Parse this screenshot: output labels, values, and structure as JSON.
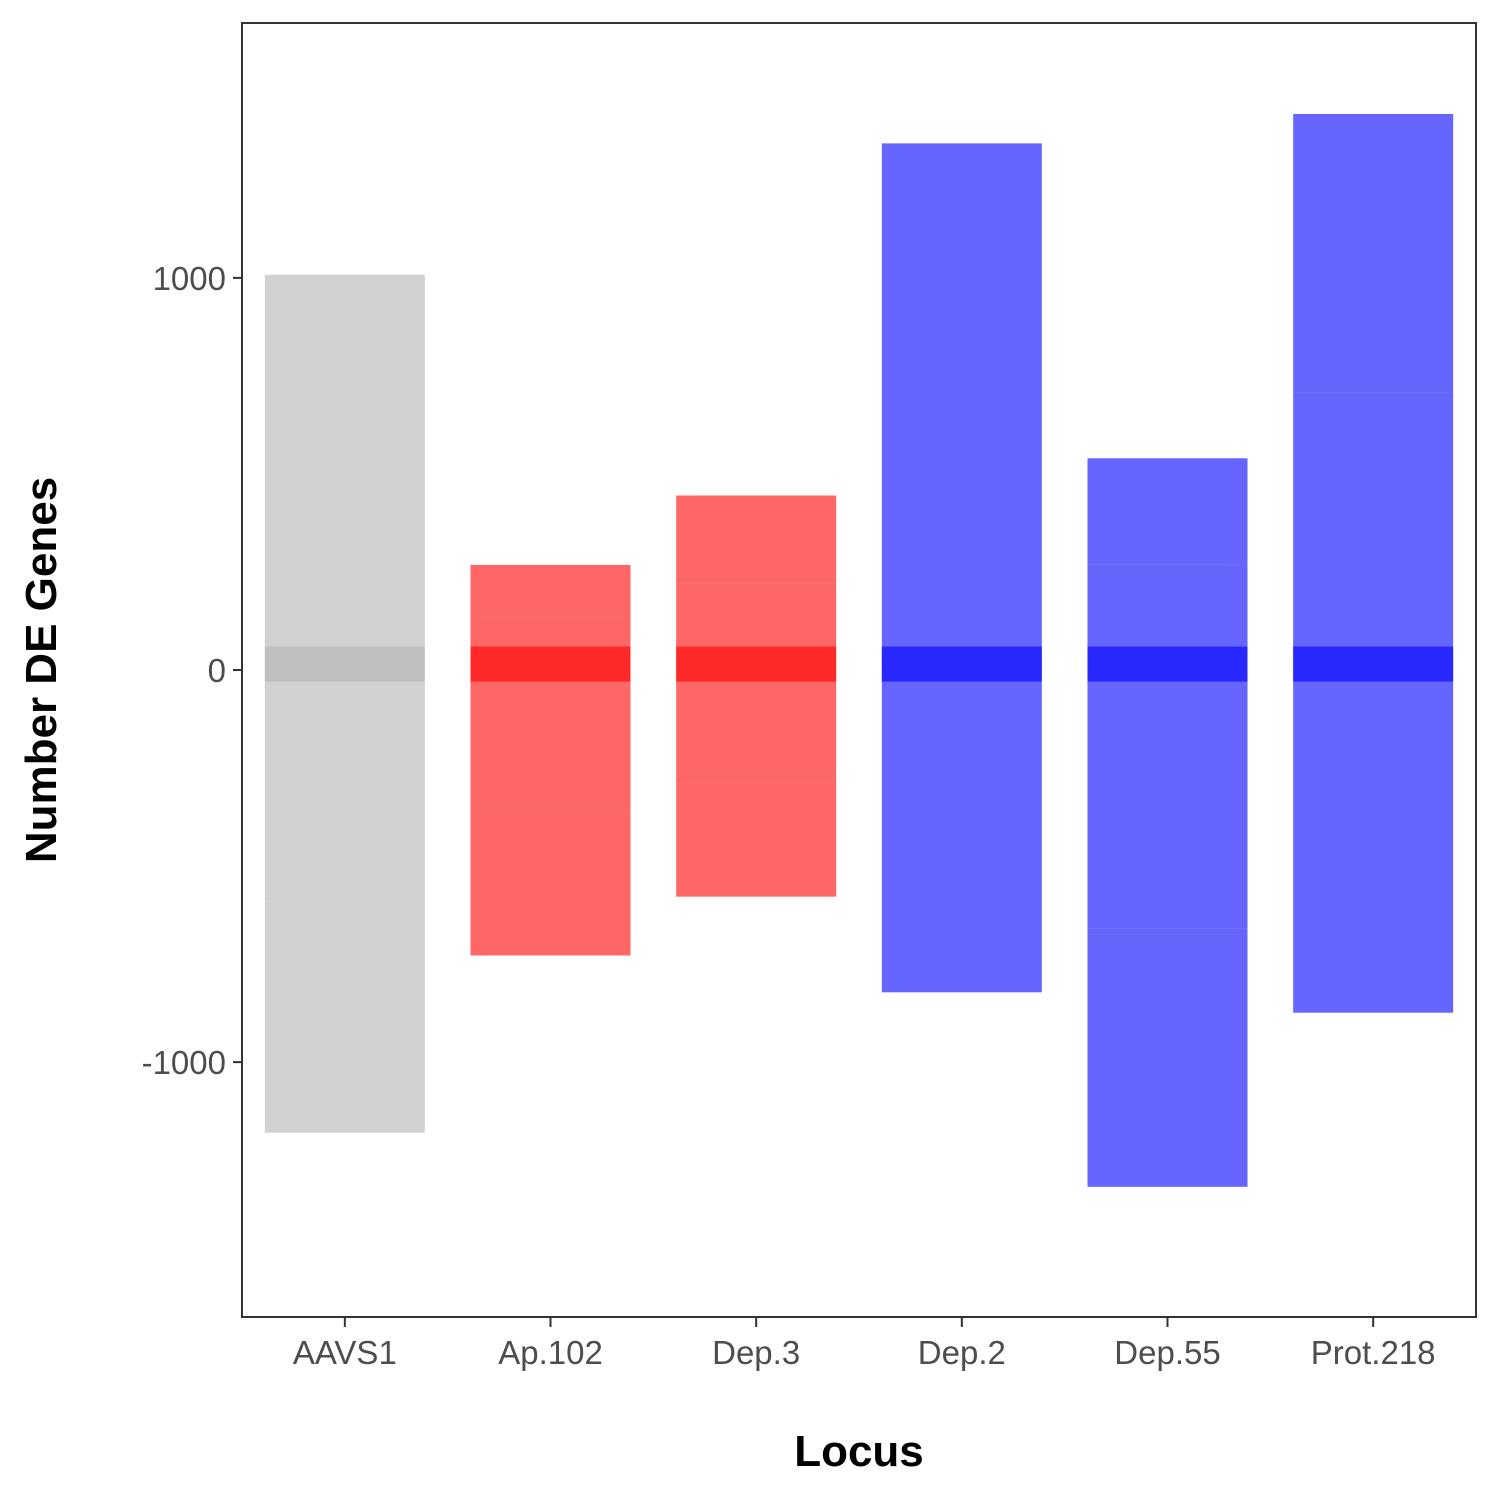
{
  "chart_data": {
    "type": "bar",
    "xlabel": "Locus",
    "ylabel": "Number DE Genes",
    "categories": [
      "AAVS1",
      "Ap.102",
      "Dep.3",
      "Dep.2",
      "Dep.55",
      "Prot.218"
    ],
    "colors": {
      "AAVS1": "#b3b3b3",
      "Ap.102": "#ff0000",
      "Dep.3": "#ff0000",
      "Dep.2": "#0000ff",
      "Dep.55": "#0000ff",
      "Prot.218": "#0000ff"
    },
    "bar_opacity": 0.6,
    "center_band": [
      -30,
      60
    ],
    "segments": [
      {
        "category": "AAVS1",
        "from": -1180,
        "to": 1008,
        "breaks": [
          -590,
          -30,
          60
        ]
      },
      {
        "category": "Ap.102",
        "from": -728,
        "to": 268,
        "breaks": [
          -365,
          -30,
          60,
          135
        ]
      },
      {
        "category": "Dep.3",
        "from": -578,
        "to": 445,
        "breaks": [
          -290,
          -30,
          60,
          220
        ]
      },
      {
        "category": "Dep.2",
        "from": -822,
        "to": 1343,
        "breaks": [
          -30,
          60
        ]
      },
      {
        "category": "Dep.55",
        "from": -1318,
        "to": 540,
        "breaks": [
          -660,
          -30,
          60,
          268
        ]
      },
      {
        "category": "Prot.218",
        "from": -874,
        "to": 1418,
        "breaks": [
          -30,
          60,
          708
        ]
      }
    ],
    "ylim": [
      -1650,
      1650
    ],
    "yticks": [
      -1000,
      0,
      1000
    ],
    "ytick_labels": [
      "-1000",
      "0",
      "1000"
    ],
    "grid": false,
    "legend": "none"
  }
}
